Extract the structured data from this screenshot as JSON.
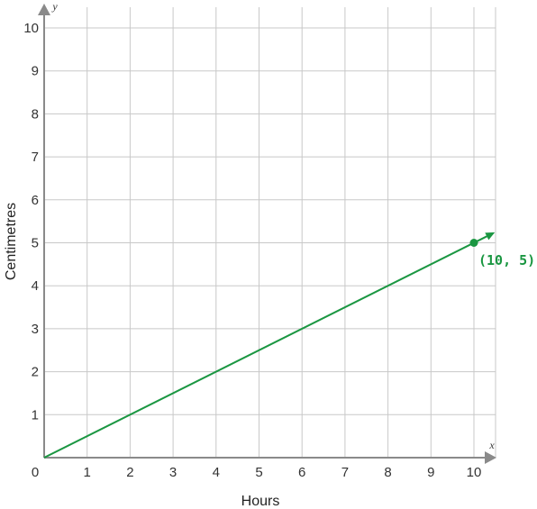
{
  "chart_data": {
    "type": "line",
    "xlabel": "Hours",
    "ylabel": "Centimetres",
    "x_axis_symbol": "x",
    "y_axis_symbol": "y",
    "origin_label": "0",
    "xlim": [
      0,
      10
    ],
    "ylim": [
      0,
      10
    ],
    "x_ticks": [
      "1",
      "2",
      "3",
      "4",
      "5",
      "6",
      "7",
      "8",
      "9",
      "10"
    ],
    "y_ticks": [
      "1",
      "2",
      "3",
      "4",
      "5",
      "6",
      "7",
      "8",
      "9",
      "10"
    ],
    "grid": true,
    "series": [
      {
        "x": [
          0,
          10
        ],
        "y": [
          0,
          5
        ],
        "color": "#1a9641"
      }
    ],
    "highlight_point": {
      "x": 10,
      "y": 5,
      "label": "(10, 5)",
      "color": "#1a9641"
    }
  }
}
